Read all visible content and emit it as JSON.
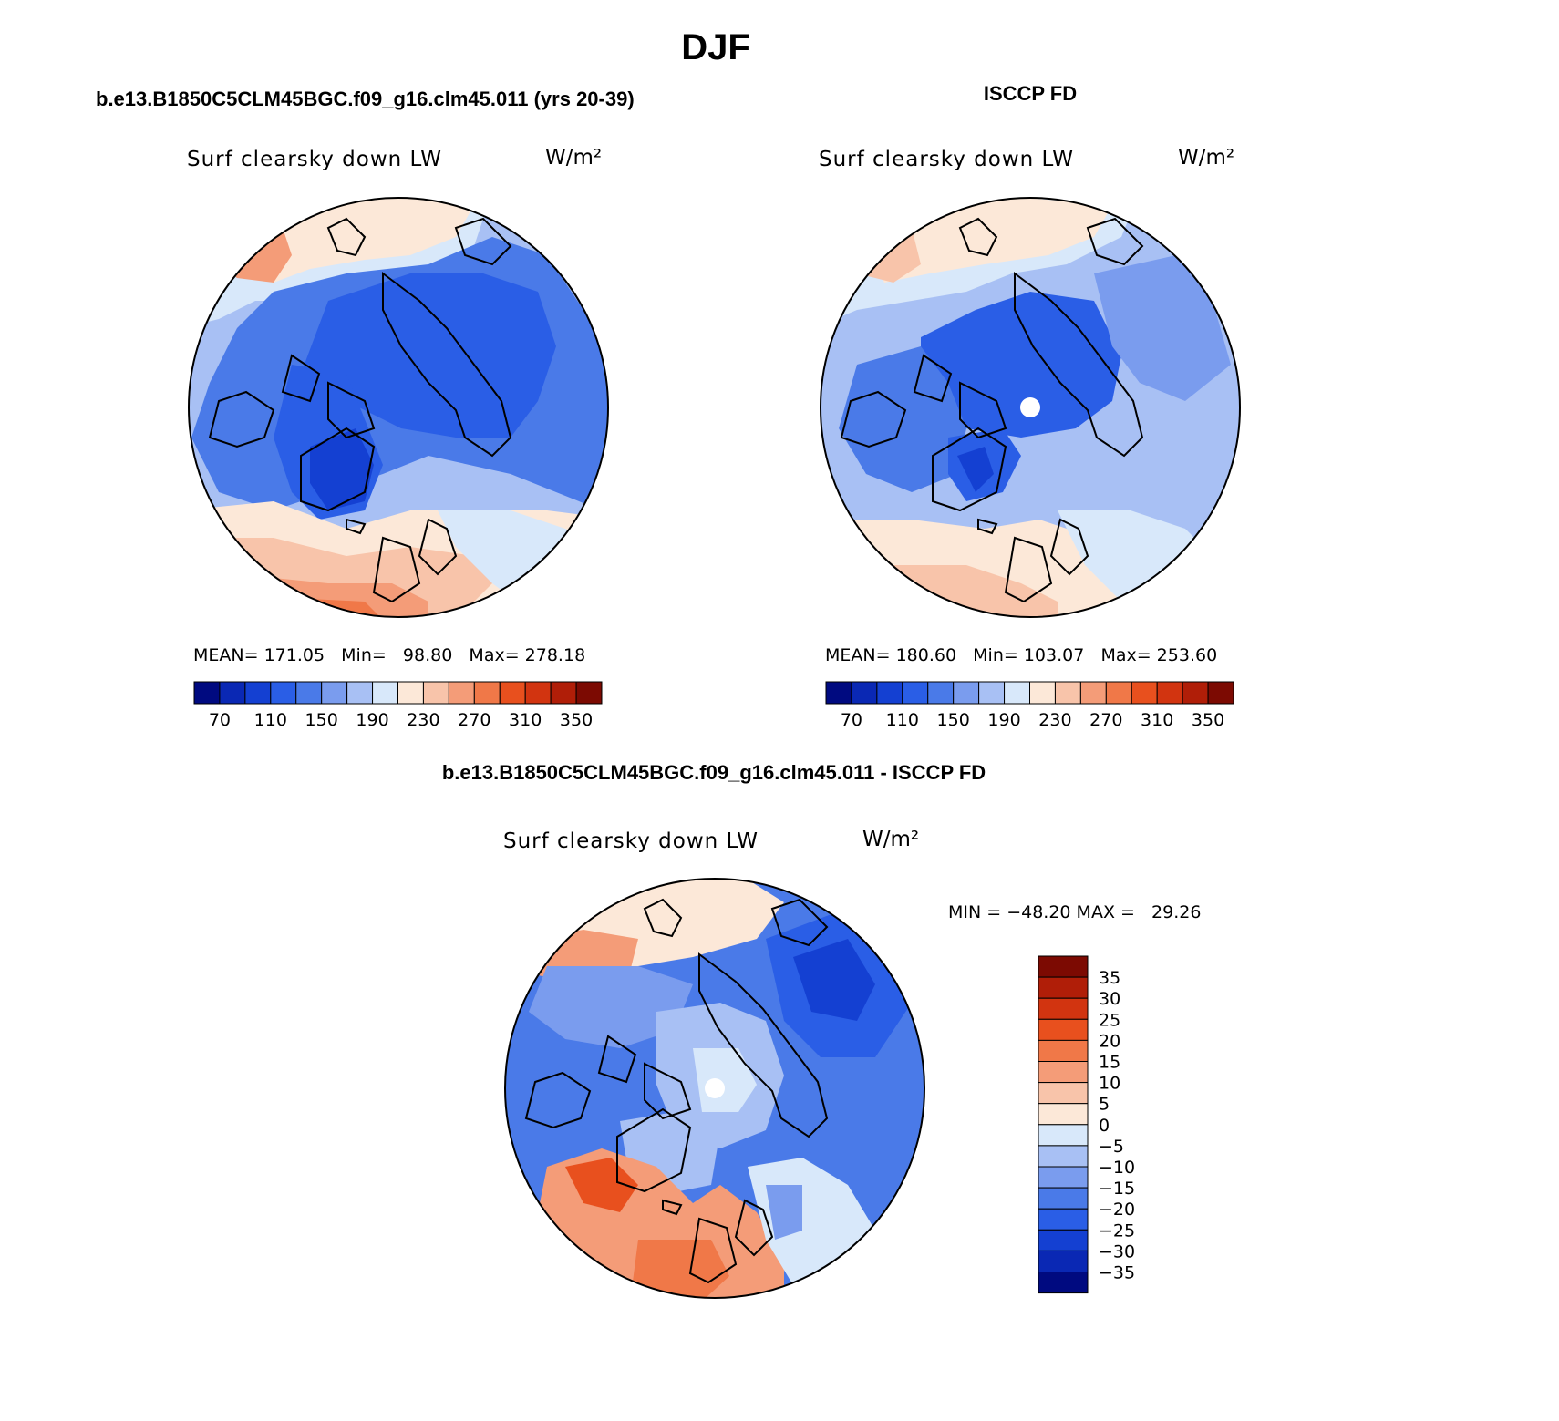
{
  "page_title": "DJF",
  "panels": {
    "model": {
      "heading": "b.e13.B1850C5CLM45BGC.f09_g16.clm45.011 (yrs 20-39)",
      "variable": "Surf clearsky down LW",
      "units": "W/m²",
      "stats": "MEAN= 171.05   Min=   98.80   Max= 278.18"
    },
    "obs": {
      "heading": "ISCCP FD",
      "variable": "Surf clearsky down LW",
      "units": "W/m²",
      "stats": "MEAN= 180.60   Min= 103.07   Max= 253.60"
    },
    "diff": {
      "heading": "b.e13.B1850C5CLM45BGC.f09_g16.clm45.011 - ISCCP FD",
      "variable": "Surf clearsky down LW",
      "units": "W/m²",
      "minmax": "MIN = −48.20 MAX =   29.26"
    }
  },
  "colorbar_abs": {
    "colors": [
      "#000a80",
      "#0a28b4",
      "#1440d2",
      "#2a5ee6",
      "#4a7ae8",
      "#7a9cee",
      "#a8c0f4",
      "#d8e8fa",
      "#fce8d8",
      "#f8c4aa",
      "#f49c78",
      "#f07848",
      "#e8501e",
      "#d23410",
      "#b01e08",
      "#7c0a02"
    ],
    "labels": [
      "70",
      "110",
      "150",
      "190",
      "230",
      "270",
      "310",
      "350"
    ]
  },
  "colorbar_diff": {
    "colors": [
      "#7c0a02",
      "#b01e08",
      "#d23410",
      "#e8501e",
      "#f07848",
      "#f49c78",
      "#f8c4aa",
      "#fce8d8",
      "#d8e8fa",
      "#a8c0f4",
      "#7a9cee",
      "#4a7ae8",
      "#2a5ee6",
      "#1440d2",
      "#0a28b4",
      "#000a80"
    ],
    "labels": [
      "35",
      "30",
      "25",
      "20",
      "15",
      "10",
      "5",
      "0",
      "−5",
      "−10",
      "−15",
      "−20",
      "−25",
      "−30",
      "−35"
    ]
  }
}
